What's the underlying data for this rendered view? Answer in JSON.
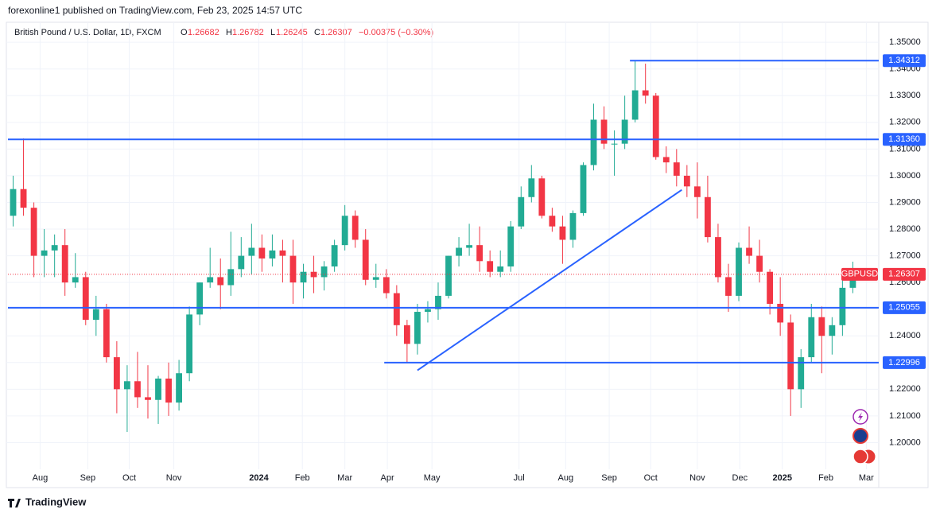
{
  "chart_data": {
    "type": "candlestick",
    "header": {
      "publisher": "forexonline1 published on TradingView.com, Feb 23, 2025 14:57 UTC",
      "symbol": "British Pound / U.S. Dollar, 1D, FXCM",
      "o_label": "O",
      "o": "1.26682",
      "h_label": "H",
      "h": "1.26782",
      "l_label": "L",
      "l": "1.26245",
      "c_label": "C",
      "c": "1.26307",
      "change": "−0.00375 (−0.30%)"
    },
    "ticker": "GBPUSD",
    "last": {
      "value": 1.26307,
      "label": "1.26307"
    },
    "up_color": "#22ab94",
    "down_color": "#f23645",
    "level_color": "#2962ff",
    "ohlc": [
      [
        1.285,
        1.3,
        1.281,
        1.295
      ],
      [
        1.295,
        1.314,
        1.285,
        1.288
      ],
      [
        1.288,
        1.29,
        1.262,
        1.27
      ],
      [
        1.27,
        1.28,
        1.262,
        1.272
      ],
      [
        1.272,
        1.278,
        1.262,
        1.274
      ],
      [
        1.274,
        1.28,
        1.255,
        1.26
      ],
      [
        1.26,
        1.271,
        1.258,
        1.262
      ],
      [
        1.262,
        1.264,
        1.244,
        1.246
      ],
      [
        1.246,
        1.255,
        1.24,
        1.25
      ],
      [
        1.25,
        1.252,
        1.23,
        1.232
      ],
      [
        1.232,
        1.238,
        1.211,
        1.22
      ],
      [
        1.22,
        1.229,
        1.204,
        1.223
      ],
      [
        1.223,
        1.234,
        1.213,
        1.217
      ],
      [
        1.217,
        1.229,
        1.209,
        1.216
      ],
      [
        1.216,
        1.225,
        1.207,
        1.224
      ],
      [
        1.224,
        1.23,
        1.21,
        1.215
      ],
      [
        1.215,
        1.231,
        1.212,
        1.226
      ],
      [
        1.226,
        1.251,
        1.223,
        1.248
      ],
      [
        1.248,
        1.26,
        1.244,
        1.26
      ],
      [
        1.26,
        1.273,
        1.258,
        1.262
      ],
      [
        1.262,
        1.269,
        1.25,
        1.259
      ],
      [
        1.259,
        1.279,
        1.255,
        1.265
      ],
      [
        1.265,
        1.277,
        1.262,
        1.27
      ],
      [
        1.27,
        1.282,
        1.263,
        1.273
      ],
      [
        1.273,
        1.278,
        1.264,
        1.269
      ],
      [
        1.269,
        1.278,
        1.266,
        1.272
      ],
      [
        1.272,
        1.276,
        1.26,
        1.27
      ],
      [
        1.27,
        1.276,
        1.252,
        1.26
      ],
      [
        1.26,
        1.267,
        1.254,
        1.264
      ],
      [
        1.264,
        1.27,
        1.256,
        1.262
      ],
      [
        1.262,
        1.268,
        1.257,
        1.266
      ],
      [
        1.266,
        1.276,
        1.264,
        1.274
      ],
      [
        1.274,
        1.289,
        1.272,
        1.285
      ],
      [
        1.285,
        1.287,
        1.273,
        1.276
      ],
      [
        1.276,
        1.28,
        1.259,
        1.261
      ],
      [
        1.261,
        1.267,
        1.258,
        1.262
      ],
      [
        1.262,
        1.265,
        1.254,
        1.256
      ],
      [
        1.256,
        1.259,
        1.24,
        1.244
      ],
      [
        1.244,
        1.246,
        1.23,
        1.237
      ],
      [
        1.237,
        1.252,
        1.233,
        1.249
      ],
      [
        1.249,
        1.253,
        1.245,
        1.25
      ],
      [
        1.25,
        1.26,
        1.246,
        1.255
      ],
      [
        1.255,
        1.27,
        1.254,
        1.27
      ],
      [
        1.27,
        1.277,
        1.266,
        1.273
      ],
      [
        1.273,
        1.282,
        1.27,
        1.274
      ],
      [
        1.274,
        1.281,
        1.264,
        1.268
      ],
      [
        1.268,
        1.272,
        1.262,
        1.264
      ],
      [
        1.264,
        1.272,
        1.262,
        1.266
      ],
      [
        1.266,
        1.283,
        1.264,
        1.281
      ],
      [
        1.281,
        1.296,
        1.28,
        1.292
      ],
      [
        1.292,
        1.304,
        1.29,
        1.299
      ],
      [
        1.299,
        1.3,
        1.284,
        1.285
      ],
      [
        1.285,
        1.288,
        1.279,
        1.281
      ],
      [
        1.281,
        1.285,
        1.267,
        1.276
      ],
      [
        1.276,
        1.287,
        1.273,
        1.286
      ],
      [
        1.286,
        1.305,
        1.285,
        1.304
      ],
      [
        1.304,
        1.327,
        1.302,
        1.321
      ],
      [
        1.321,
        1.326,
        1.31,
        1.312
      ],
      [
        1.312,
        1.317,
        1.3,
        1.312
      ],
      [
        1.312,
        1.33,
        1.31,
        1.321
      ],
      [
        1.321,
        1.343,
        1.32,
        1.332
      ],
      [
        1.332,
        1.342,
        1.327,
        1.33
      ],
      [
        1.33,
        1.331,
        1.306,
        1.307
      ],
      [
        1.307,
        1.311,
        1.301,
        1.305
      ],
      [
        1.305,
        1.31,
        1.296,
        1.3
      ],
      [
        1.3,
        1.304,
        1.292,
        1.296
      ],
      [
        1.296,
        1.305,
        1.284,
        1.292
      ],
      [
        1.292,
        1.3,
        1.275,
        1.277
      ],
      [
        1.277,
        1.282,
        1.26,
        1.262
      ],
      [
        1.262,
        1.267,
        1.249,
        1.255
      ],
      [
        1.255,
        1.275,
        1.253,
        1.273
      ],
      [
        1.273,
        1.281,
        1.267,
        1.27
      ],
      [
        1.27,
        1.276,
        1.26,
        1.264
      ],
      [
        1.264,
        1.265,
        1.248,
        1.252
      ],
      [
        1.252,
        1.262,
        1.24,
        1.245
      ],
      [
        1.245,
        1.248,
        1.21,
        1.22
      ],
      [
        1.22,
        1.235,
        1.213,
        1.232
      ],
      [
        1.232,
        1.252,
        1.23,
        1.247
      ],
      [
        1.247,
        1.251,
        1.226,
        1.24
      ],
      [
        1.24,
        1.247,
        1.233,
        1.244
      ],
      [
        1.244,
        1.262,
        1.24,
        1.258
      ],
      [
        1.258,
        1.2678,
        1.256,
        1.2631
      ]
    ],
    "ylim": [
      1.19,
      1.3575
    ],
    "xlim": [
      -0.5,
      83.5
    ],
    "yticks": [
      {
        "value": 1.2,
        "label": "1.20000"
      },
      {
        "value": 1.21,
        "label": "1.21000"
      },
      {
        "value": 1.22,
        "label": "1.22000"
      },
      {
        "value": 1.23,
        "label": "1.23000"
      },
      {
        "value": 1.24,
        "label": "1.24000"
      },
      {
        "value": 1.25,
        "label": "1.25000"
      },
      {
        "value": 1.26,
        "label": "1.26000"
      },
      {
        "value": 1.27,
        "label": "1.27000"
      },
      {
        "value": 1.28,
        "label": "1.28000"
      },
      {
        "value": 1.29,
        "label": "1.29000"
      },
      {
        "value": 1.3,
        "label": "1.30000"
      },
      {
        "value": 1.31,
        "label": "1.31000"
      },
      {
        "value": 1.32,
        "label": "1.32000"
      },
      {
        "value": 1.33,
        "label": "1.33000"
      },
      {
        "value": 1.34,
        "label": "1.34000"
      },
      {
        "value": 1.35,
        "label": "1.35000"
      }
    ],
    "xticks": [
      {
        "value": 2.6,
        "label": "Aug"
      },
      {
        "value": 7.2,
        "label": "Sep"
      },
      {
        "value": 11.2,
        "label": "Oct"
      },
      {
        "value": 15.5,
        "label": "Nov"
      },
      {
        "value": 23.7,
        "label": "2024"
      },
      {
        "value": 27.9,
        "label": "Feb"
      },
      {
        "value": 32.0,
        "label": "Mar"
      },
      {
        "value": 36.1,
        "label": "Apr"
      },
      {
        "value": 40.4,
        "label": "May"
      },
      {
        "value": 48.8,
        "label": "Jul"
      },
      {
        "value": 53.3,
        "label": "Aug"
      },
      {
        "value": 57.5,
        "label": "Sep"
      },
      {
        "value": 61.5,
        "label": "Oct"
      },
      {
        "value": 66.0,
        "label": "Nov"
      },
      {
        "value": 70.1,
        "label": "Dec"
      },
      {
        "value": 74.2,
        "label": "2025"
      },
      {
        "value": 78.4,
        "label": "Feb"
      },
      {
        "value": 82.3,
        "label": "Mar"
      }
    ],
    "levels": [
      {
        "value": 1.34312,
        "label": "1.34312",
        "from": 59.5
      },
      {
        "value": 1.3136,
        "label": "1.31360",
        "from": -0.5
      },
      {
        "value": 1.25055,
        "label": "1.25055",
        "from": -0.5
      },
      {
        "value": 1.22996,
        "label": "1.22996",
        "from": 35.8
      }
    ],
    "trendline": [
      [
        39.0,
        1.2271
      ],
      [
        64.5,
        1.2947
      ]
    ],
    "grid": true,
    "footer": "TradingView"
  }
}
